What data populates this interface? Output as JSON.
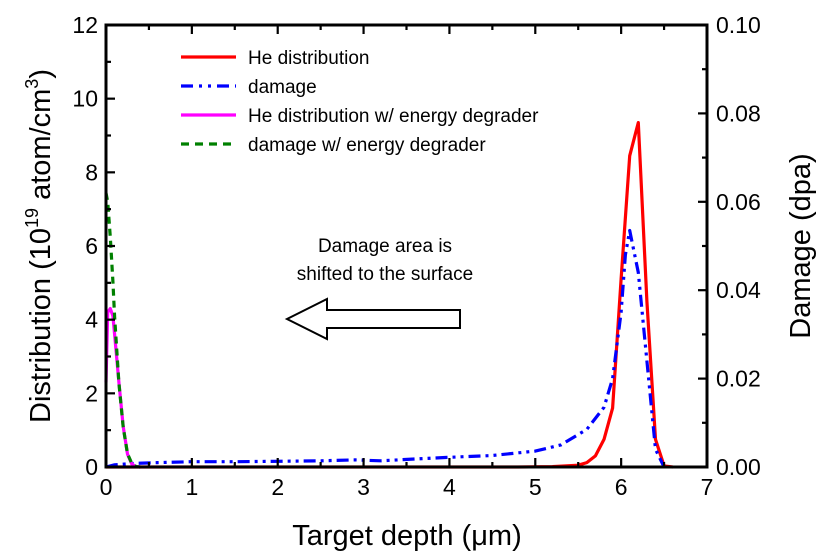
{
  "chart_data": {
    "type": "line",
    "title": "",
    "xlabel": "Target depth (μm)",
    "ylabel_left": {
      "prefix": "Distribution (10",
      "sup1": "19",
      "mid": " atom/cm",
      "sup2": "3",
      "suffix": ")"
    },
    "ylabel_right": "Damage (dpa)",
    "xlim": [
      0,
      7
    ],
    "ylim_left": [
      0,
      12
    ],
    "ylim_right": [
      0,
      0.1
    ],
    "x_ticks": [
      "0",
      "1",
      "2",
      "3",
      "4",
      "5",
      "6",
      "7"
    ],
    "y_left_ticks": [
      "0",
      "2",
      "4",
      "6",
      "8",
      "10",
      "12"
    ],
    "y_right_ticks": [
      "0.00",
      "0.02",
      "0.04",
      "0.06",
      "0.08",
      "0.10"
    ],
    "grid": false,
    "legend_position": "top-left",
    "series": [
      {
        "name": "He distribution",
        "axis": "left",
        "color": "#ff0000",
        "style": "solid",
        "x": [
          0,
          4.2,
          4.8,
          5.2,
          5.5,
          5.6,
          5.7,
          5.8,
          5.9,
          6.0,
          6.1,
          6.2,
          6.3,
          6.4,
          6.5,
          6.6
        ],
        "y": [
          0,
          0,
          0.0,
          0.01,
          0.05,
          0.12,
          0.3,
          0.75,
          1.6,
          5.1,
          8.45,
          9.35,
          4.5,
          0.75,
          0.03,
          0
        ]
      },
      {
        "name": "damage",
        "axis": "right",
        "color": "#0000ff",
        "style": "dash-dot-dot",
        "x": [
          0,
          0.1,
          0.3,
          0.6,
          1.0,
          1.5,
          2.0,
          2.5,
          2.9,
          3.2,
          3.6,
          4.0,
          4.5,
          5.0,
          5.3,
          5.6,
          5.8,
          5.9,
          6.0,
          6.05,
          6.1,
          6.2,
          6.3,
          6.4,
          6.5
        ],
        "y": [
          0,
          0.0005,
          0.0008,
          0.001,
          0.0012,
          0.0012,
          0.0013,
          0.0014,
          0.0016,
          0.0014,
          0.0018,
          0.0022,
          0.0026,
          0.0036,
          0.005,
          0.0085,
          0.0135,
          0.02,
          0.035,
          0.048,
          0.0535,
          0.044,
          0.024,
          0.004,
          0
        ]
      },
      {
        "name": "He distribution w/ energy degrader",
        "axis": "left",
        "color": "#ff00ff",
        "style": "solid",
        "x": [
          0,
          0.02,
          0.05,
          0.08,
          0.1,
          0.15,
          0.2,
          0.25,
          0.3,
          0.35,
          0.4
        ],
        "y": [
          2.3,
          4.2,
          4.3,
          4.1,
          3.6,
          2.3,
          1.1,
          0.35,
          0.08,
          0.01,
          0
        ]
      },
      {
        "name": "damage w/ energy degrader",
        "axis": "right",
        "color": "#008000",
        "style": "dashed",
        "x": [
          0,
          0.02,
          0.05,
          0.08,
          0.1,
          0.15,
          0.2,
          0.25,
          0.3,
          0.35,
          0.4
        ],
        "y": [
          0.062,
          0.06,
          0.052,
          0.042,
          0.034,
          0.019,
          0.009,
          0.003,
          0.0008,
          0.0001,
          0
        ]
      }
    ],
    "annotations": [
      {
        "text_lines": [
          "Damage area is",
          "shifted to the surface"
        ],
        "arrow_direction": "left",
        "arrow_x_range": [
          0.3,
          4.05
        ],
        "arrow_y": 4.0
      }
    ]
  }
}
